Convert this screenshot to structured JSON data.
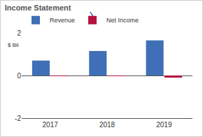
{
  "chart_data": {
    "type": "bar",
    "title": "Income Statement",
    "y_label": "$ Bil",
    "categories": [
      "2017",
      "2018",
      "2019"
    ],
    "series": [
      {
        "name": "Revenue",
        "color": "#3f6fb6",
        "values": [
          0.7,
          1.15,
          1.65
        ]
      },
      {
        "name": "Net Income",
        "color": "#b5123f",
        "values": [
          -0.03,
          -0.03,
          -0.1
        ]
      }
    ],
    "ylim": [
      -2,
      2
    ],
    "yticks": [
      -2,
      0,
      2
    ],
    "grid": true,
    "legend": "top-left"
  }
}
